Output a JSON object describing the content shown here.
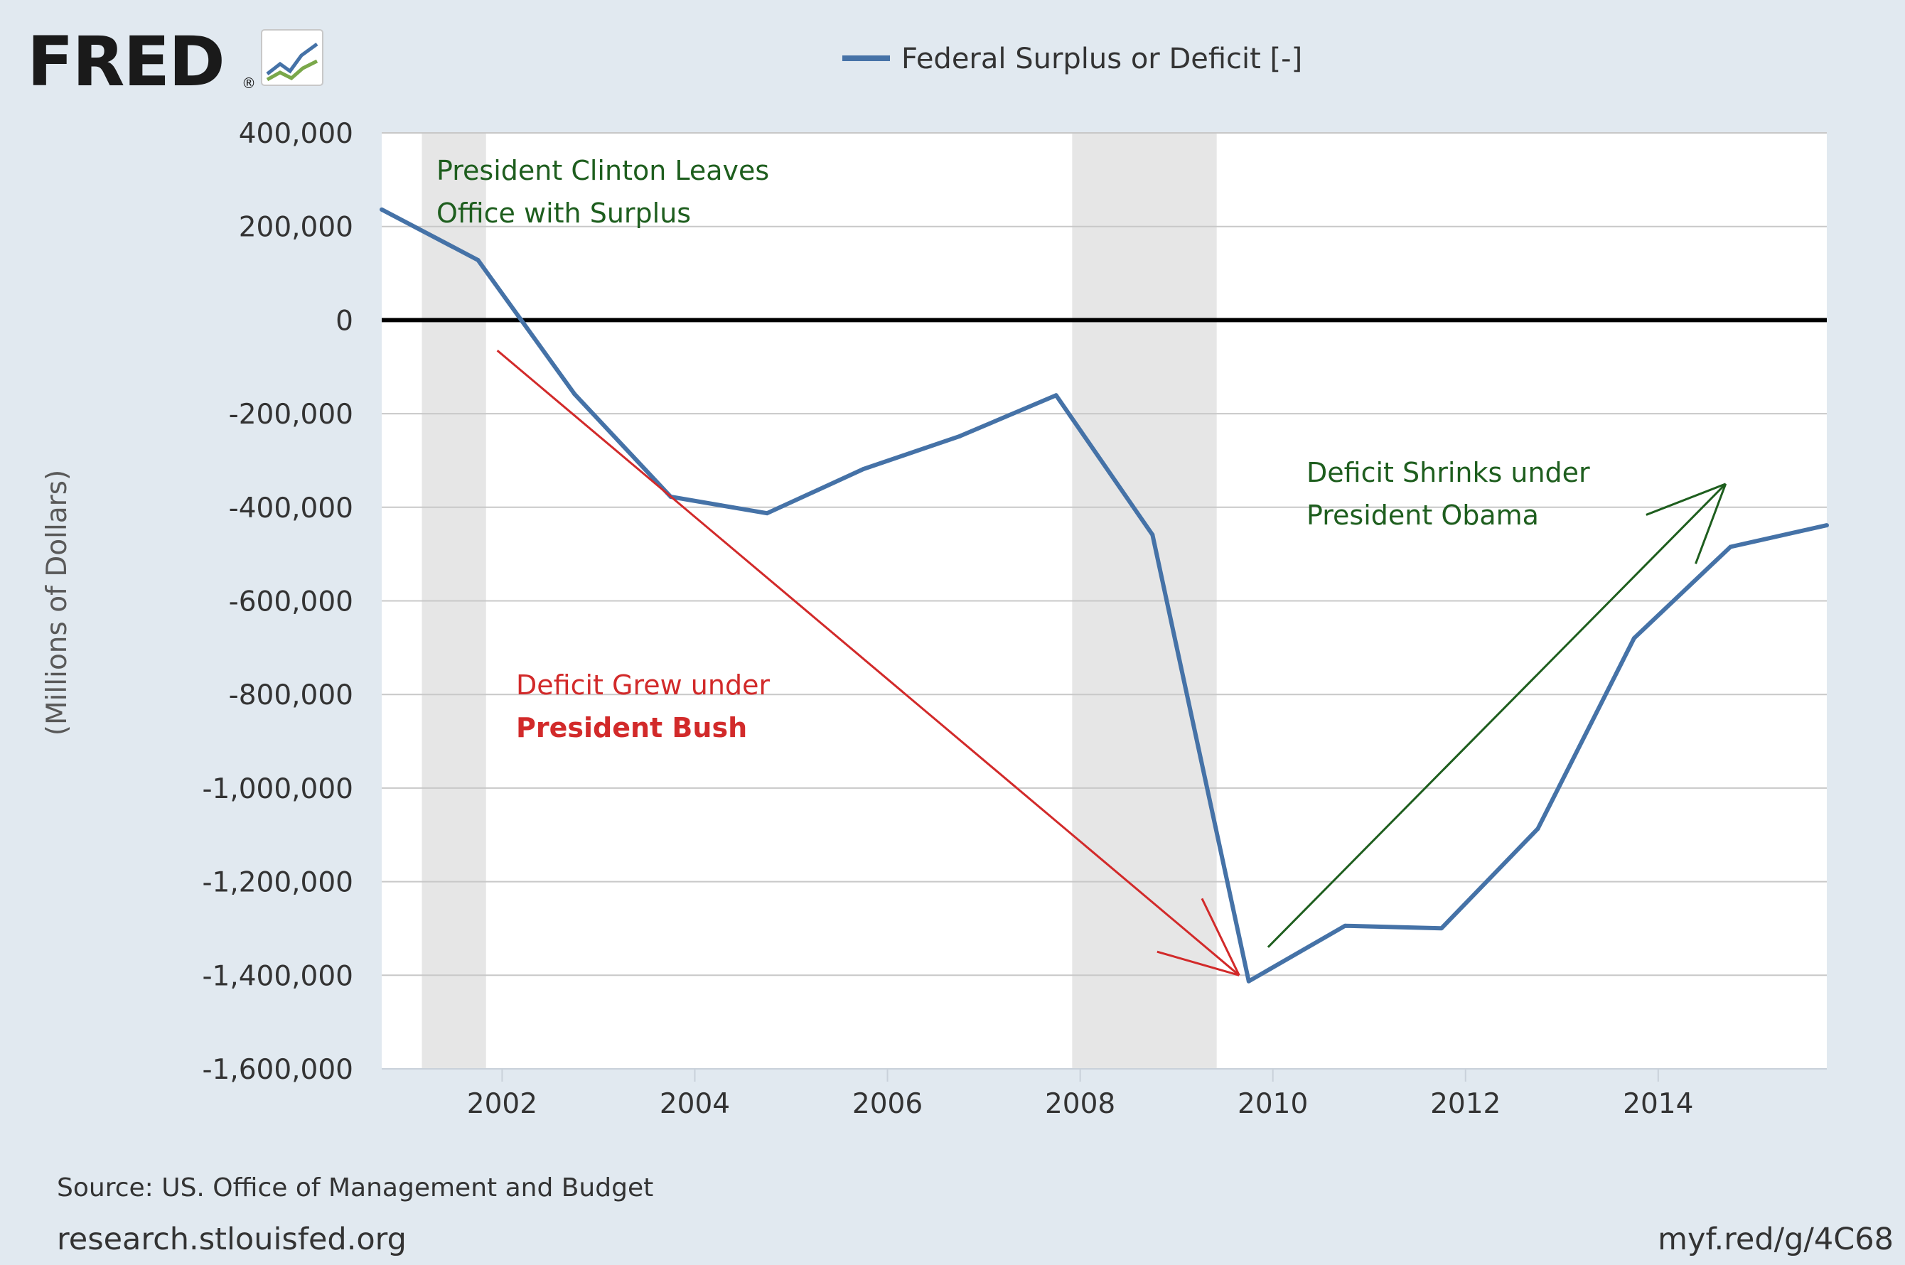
{
  "branding": {
    "logo_text": "FRED",
    "registered_mark": "®",
    "logo_icon": "line-graph-icon"
  },
  "chart_data": {
    "type": "line",
    "legend": "Federal Surplus or Deficit [-]",
    "legend_position": "top-center",
    "ylabel": "(Millions of Dollars)",
    "xlabel": "",
    "ylim": [
      -1600000,
      400000
    ],
    "xlim": [
      2000.75,
      2015.75
    ],
    "y_ticks": [
      400000,
      200000,
      0,
      -200000,
      -400000,
      -600000,
      -800000,
      -1000000,
      -1200000,
      -1400000,
      -1600000
    ],
    "y_tick_labels": [
      "400,000",
      "200,000",
      "0",
      "-200,000",
      "-400,000",
      "-600,000",
      "-800,000",
      "-1,000,000",
      "-1,200,000",
      "-1,400,000",
      "-1,600,000"
    ],
    "x_ticks": [
      2002,
      2004,
      2006,
      2008,
      2010,
      2012,
      2014
    ],
    "x_tick_labels": [
      "2002",
      "2004",
      "2006",
      "2008",
      "2010",
      "2012",
      "2014"
    ],
    "grid": true,
    "series": [
      {
        "name": "Federal Surplus or Deficit [-]",
        "color": "#4572a7",
        "x": [
          2000.75,
          2001.75,
          2002.75,
          2003.75,
          2004.75,
          2005.75,
          2006.75,
          2007.75,
          2008.75,
          2009.75,
          2010.75,
          2011.75,
          2012.75,
          2013.75,
          2014.75,
          2015.75
        ],
        "y": [
          236241,
          128236,
          -157758,
          -377585,
          -412727,
          -318346,
          -248181,
          -160701,
          -458553,
          -1412688,
          -1294373,
          -1299599,
          -1087024,
          -679775,
          -484602,
          -438496
        ]
      }
    ],
    "recessions": [
      {
        "start": 2001.167,
        "end": 2001.833
      },
      {
        "start": 2007.917,
        "end": 2009.417
      }
    ],
    "zero_line": 0,
    "annotations": [
      {
        "id": "clinton",
        "lines": [
          "President Clinton Leaves",
          "Office with Surplus"
        ],
        "color": "#1e5e1e"
      },
      {
        "id": "bush",
        "lines": [
          "Deficit Grew under",
          "President Bush"
        ],
        "color": "#d22a2a"
      },
      {
        "id": "obama",
        "lines": [
          "Deficit Shrinks under",
          "President Obama"
        ],
        "color": "#1e5e1e"
      }
    ],
    "arrows": [
      {
        "id": "bush-arrow",
        "color": "#d22a2a",
        "from": [
          2001.95,
          -65000
        ],
        "to": [
          2009.65,
          -1400000
        ]
      },
      {
        "id": "obama-arrow",
        "color": "#1e5e1e",
        "from": [
          2009.95,
          -1340000
        ],
        "to": [
          2014.7,
          -350000
        ]
      }
    ]
  },
  "footer": {
    "source": "Source: US. Office of Management and Budget",
    "site": "research.stlouisfed.org",
    "short_url": "myf.red/g/4C68"
  }
}
